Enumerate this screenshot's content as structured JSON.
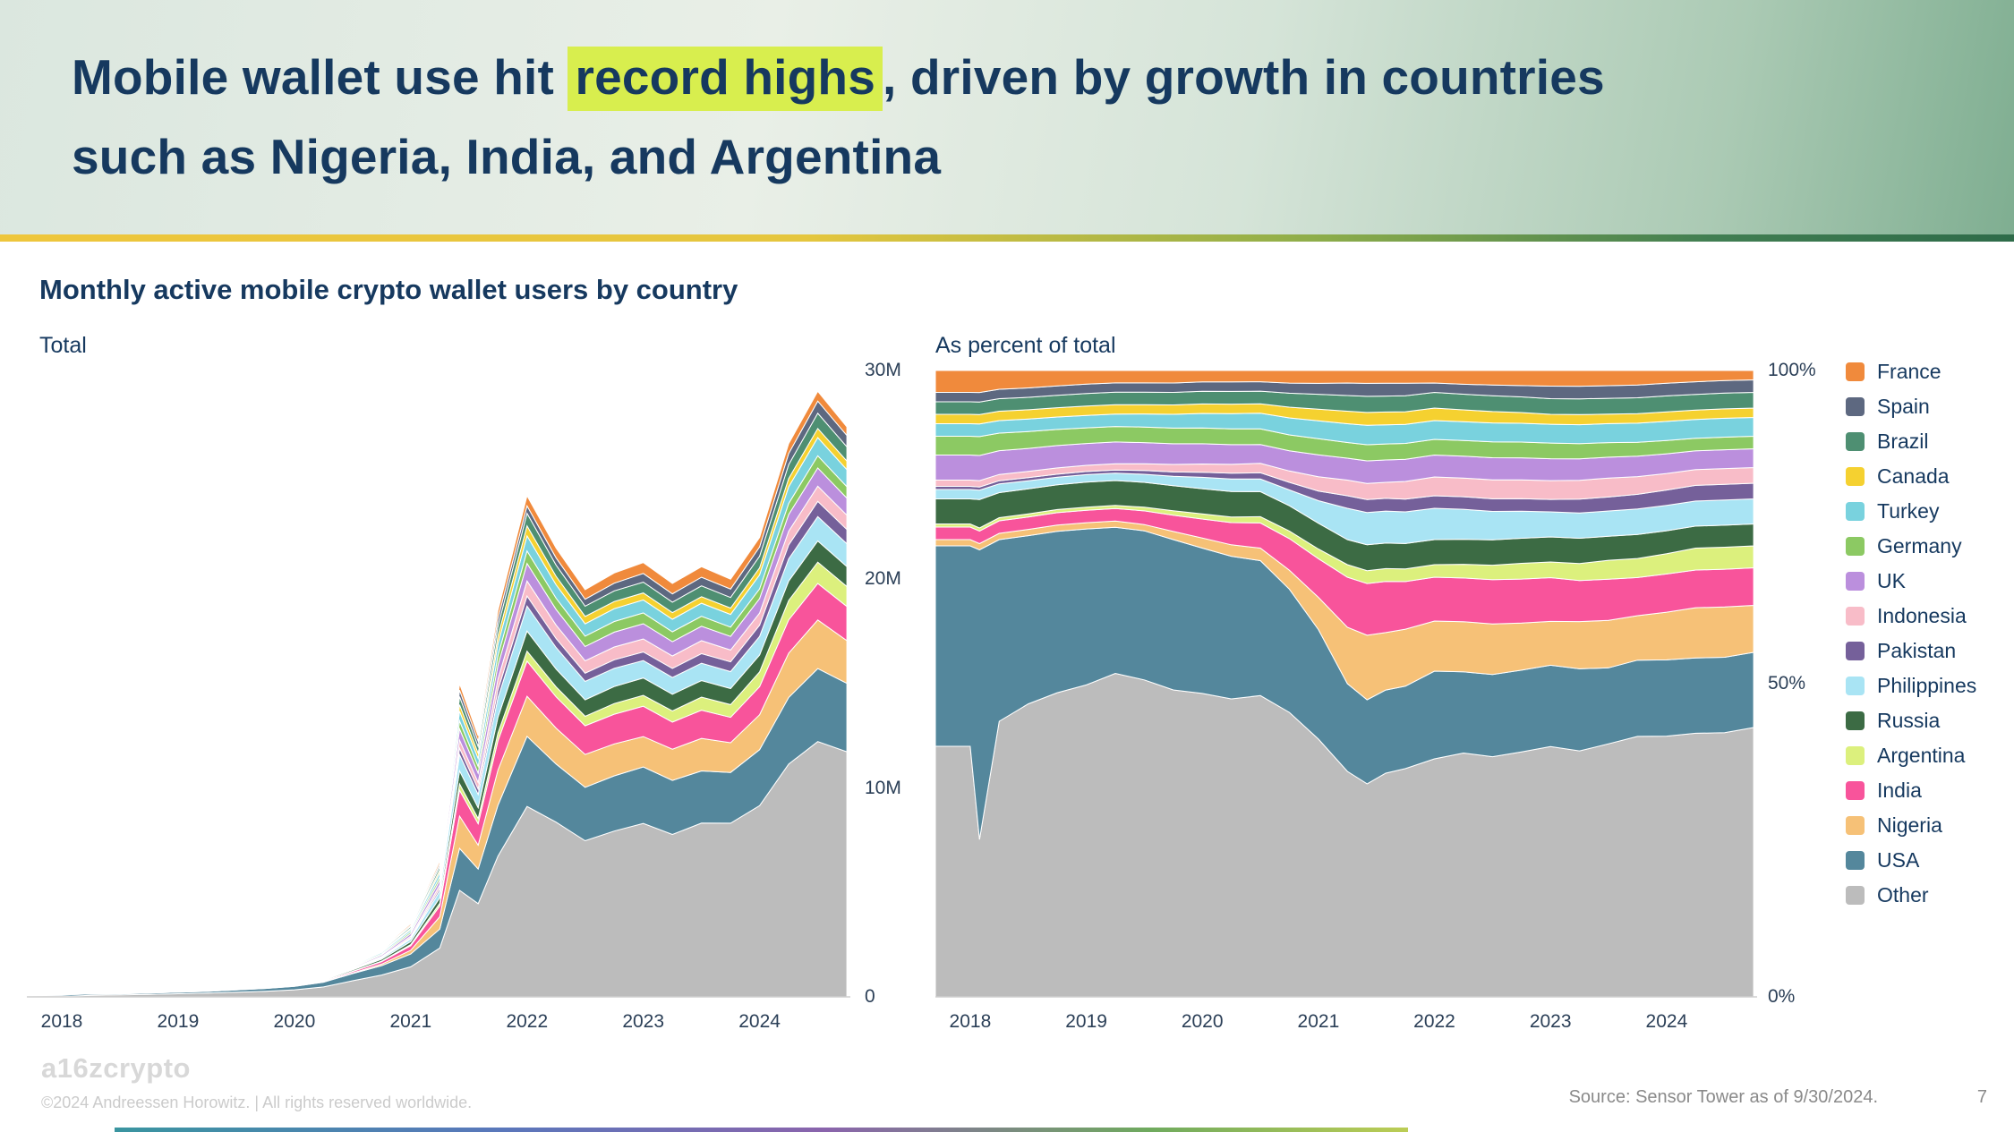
{
  "slide": {
    "title": {
      "line1_pre": "Mobile wallet use hit ",
      "line1_highlight": "record highs",
      "line1_post": ", driven by growth in countries",
      "line2": "such as Nigeria, India, and Argentina"
    },
    "section_title": "Monthly active mobile crypto wallet users by country",
    "footer": {
      "logo": "a16zcrypto",
      "copyright": "©2024 Andreessen Horowitz.  |  All rights reserved worldwide.",
      "source": "Source: Sensor Tower as of 9/30/2024.",
      "page_number": "7"
    }
  },
  "chart_data": {
    "type": "area",
    "stacked": true,
    "title": "Monthly active mobile crypto wallet users by country",
    "x_domain": [
      2017.7,
      2024.78
    ],
    "x_ticks": [
      "2018",
      "2019",
      "2020",
      "2021",
      "2022",
      "2023",
      "2024"
    ],
    "x": [
      2017.7,
      2018.0,
      2018.08,
      2018.25,
      2018.5,
      2018.75,
      2019.0,
      2019.25,
      2019.5,
      2019.75,
      2020.0,
      2020.25,
      2020.5,
      2020.75,
      2021.0,
      2021.25,
      2021.42,
      2021.58,
      2021.75,
      2022.0,
      2022.25,
      2022.5,
      2022.75,
      2023.0,
      2023.25,
      2023.5,
      2023.75,
      2024.0,
      2024.25,
      2024.5,
      2024.75
    ],
    "totals_millions": [
      0.12,
      0.15,
      0.16,
      0.18,
      0.2,
      0.25,
      0.3,
      0.35,
      0.45,
      0.55,
      0.7,
      1.0,
      1.6,
      2.3,
      3.5,
      6.5,
      15.0,
      12.5,
      18.5,
      24.0,
      21.5,
      19.5,
      20.3,
      20.8,
      19.8,
      20.6,
      20.0,
      22.0,
      26.5,
      29.0,
      27.3
    ],
    "total_chart": {
      "label": "Total",
      "ylim_millions": [
        0,
        30
      ],
      "yticks": [
        "30M",
        "20M",
        "10M",
        "0"
      ]
    },
    "percent_chart": {
      "label": "As percent of total",
      "ylim_pct": [
        0,
        100
      ],
      "yticks": [
        "100%",
        "50%",
        "0%"
      ]
    },
    "legend_top_to_bottom": [
      "France",
      "Spain",
      "Brazil",
      "Canada",
      "Turkey",
      "Germany",
      "UK",
      "Indonesia",
      "Pakistan",
      "Philippines",
      "Russia",
      "Argentina",
      "India",
      "Nigeria",
      "USA",
      "Other"
    ],
    "series_bottom_to_top": [
      {
        "name": "Other",
        "color": "#bcbcbc",
        "share_pct": [
          40,
          40,
          25,
          44,
          47,
          49,
          50,
          52,
          51,
          49,
          48,
          47,
          48,
          45,
          40,
          36,
          33,
          35,
          36,
          38,
          39,
          38,
          39,
          40,
          39,
          40,
          41,
          41,
          42,
          42,
          43
        ]
      },
      {
        "name": "USA",
        "color": "#54879c",
        "share_pct": [
          32,
          32,
          46,
          29,
          27,
          26,
          25,
          23.5,
          24,
          24,
          23,
          22.5,
          21.5,
          19.5,
          17,
          14,
          13,
          13,
          13,
          14,
          13,
          13,
          13,
          13,
          13,
          12,
          12,
          12,
          12,
          12,
          12
        ]
      },
      {
        "name": "Nigeria",
        "color": "#f6c177",
        "share_pct": [
          1,
          1,
          1,
          1,
          1,
          1,
          1,
          1,
          1,
          1.3,
          1.6,
          1.8,
          2,
          3,
          5,
          9,
          10,
          9,
          9,
          8,
          8,
          8,
          7.5,
          7,
          7.5,
          7.5,
          7,
          7.5,
          8,
          8,
          7.5
        ]
      },
      {
        "name": "India",
        "color": "#f8549b",
        "share_pct": [
          2,
          2,
          2,
          2,
          2,
          2,
          2,
          2,
          2.2,
          2.6,
          3,
          3.5,
          4,
          5,
          6,
          8,
          8,
          8,
          7.5,
          7,
          7,
          7,
          7,
          7,
          6.5,
          6.5,
          6,
          6,
          6,
          6,
          6
        ]
      },
      {
        "name": "Argentina",
        "color": "#dcf07d",
        "share_pct": [
          0.5,
          0.5,
          0.5,
          0.5,
          0.5,
          0.5,
          0.5,
          0.5,
          0.6,
          0.7,
          0.8,
          0.9,
          1,
          1.2,
          1.5,
          2,
          2,
          2,
          2,
          2,
          2.2,
          2.3,
          2.5,
          2.5,
          2.7,
          3,
          3,
          3.2,
          3.5,
          3.5,
          3.5
        ]
      },
      {
        "name": "Russia",
        "color": "#3c6b44",
        "share_pct": [
          4,
          4,
          4.5,
          4,
          4,
          4,
          4,
          4,
          4,
          4,
          4,
          4,
          4,
          4,
          4,
          4,
          4,
          4,
          4,
          4,
          4,
          4,
          4,
          4,
          4,
          3.8,
          3.8,
          3.6,
          3.5,
          3.5,
          3.5
        ]
      },
      {
        "name": "Philippines",
        "color": "#a9e4f4",
        "share_pct": [
          1.5,
          1.5,
          1.5,
          1.4,
          1.3,
          1.2,
          1.2,
          1.2,
          1.3,
          1.5,
          1.8,
          2,
          2,
          2.5,
          3.5,
          5,
          5,
          5,
          5,
          5,
          4.8,
          4.5,
          4.3,
          4,
          4,
          4,
          4,
          4,
          4,
          4,
          4
        ]
      },
      {
        "name": "Pakistan",
        "color": "#75609a",
        "share_pct": [
          0.5,
          0.5,
          0.5,
          0.5,
          0.5,
          0.5,
          0.5,
          0.5,
          0.6,
          0.7,
          0.8,
          0.9,
          1,
          1.2,
          1.5,
          2,
          2,
          2,
          2,
          2,
          2,
          2,
          2,
          2,
          2.2,
          2.2,
          2.3,
          2.4,
          2.5,
          2.5,
          2.5
        ]
      },
      {
        "name": "Indonesia",
        "color": "#f8bcc8",
        "share_pct": [
          1,
          1,
          1,
          1,
          1,
          1,
          1,
          1,
          1.1,
          1.2,
          1.3,
          1.4,
          1.5,
          1.8,
          2.2,
          2.5,
          2.5,
          2.5,
          2.8,
          3,
          3,
          3,
          3,
          3,
          3,
          3,
          2.8,
          2.6,
          2.5,
          2.5,
          2.5
        ]
      },
      {
        "name": "UK",
        "color": "#bb8fdd",
        "share_pct": [
          4,
          4,
          4,
          3.8,
          3.7,
          3.6,
          3.5,
          3.5,
          3.4,
          3.3,
          3.2,
          3.1,
          3,
          3.2,
          3.4,
          3.5,
          3.5,
          3.5,
          3.5,
          3.5,
          3.5,
          3.5,
          3.5,
          3.5,
          3.4,
          3.3,
          3.2,
          3.1,
          3,
          3,
          3
        ]
      },
      {
        "name": "Germany",
        "color": "#8cc963",
        "share_pct": [
          3,
          3,
          3,
          2.8,
          2.7,
          2.6,
          2.5,
          2.5,
          2.5,
          2.5,
          2.5,
          2.5,
          2.5,
          2.5,
          2.5,
          2.5,
          2.5,
          2.5,
          2.5,
          2.5,
          2.5,
          2.5,
          2.5,
          2.5,
          2.4,
          2.3,
          2.2,
          2.1,
          2,
          2,
          2
        ]
      },
      {
        "name": "Turkey",
        "color": "#79d2de",
        "share_pct": [
          2,
          2,
          2,
          2,
          2,
          2,
          2,
          2,
          2.1,
          2.2,
          2.3,
          2.4,
          2.5,
          2.7,
          2.8,
          3,
          3,
          3,
          3,
          3,
          3,
          3,
          3,
          3,
          3,
          3,
          3,
          3,
          3,
          3,
          3
        ]
      },
      {
        "name": "Canada",
        "color": "#f5d130",
        "share_pct": [
          1.5,
          1.5,
          1.5,
          1.5,
          1.5,
          1.5,
          1.5,
          1.5,
          1.5,
          1.5,
          1.5,
          1.5,
          1.5,
          1.7,
          1.8,
          2,
          2,
          2,
          2,
          2,
          1.9,
          1.8,
          1.7,
          1.6,
          1.6,
          1.5,
          1.5,
          1.5,
          1.5,
          1.5,
          1.5
        ]
      },
      {
        "name": "Brazil",
        "color": "#4e8f72",
        "share_pct": [
          2,
          2,
          2,
          2,
          2,
          2,
          2,
          2,
          2,
          2,
          2,
          2,
          2,
          2.2,
          2.3,
          2.5,
          2.5,
          2.5,
          2.5,
          2.5,
          2.5,
          2.5,
          2.5,
          2.5,
          2.5,
          2.5,
          2.5,
          2.5,
          2.5,
          2.5,
          2.5
        ]
      },
      {
        "name": "Spain",
        "color": "#5d6880",
        "share_pct": [
          1.5,
          1.5,
          1.5,
          1.5,
          1.5,
          1.5,
          1.5,
          1.5,
          1.5,
          1.5,
          1.5,
          1.5,
          1.5,
          1.6,
          1.7,
          2,
          2,
          2,
          2,
          1.5,
          1.6,
          1.7,
          1.8,
          2,
          2,
          2,
          2,
          2,
          2,
          2,
          2
        ]
      },
      {
        "name": "France",
        "color": "#f08a3c",
        "share_pct": [
          3.5,
          3.5,
          3.5,
          3,
          2.8,
          2.5,
          2.2,
          2,
          2,
          2,
          1.8,
          1.8,
          1.8,
          2,
          2,
          2,
          2,
          2,
          2,
          2,
          2.2,
          2.3,
          2.4,
          2.5,
          2.5,
          2.4,
          2.3,
          2,
          1.8,
          1.6,
          1.5
        ]
      }
    ]
  }
}
